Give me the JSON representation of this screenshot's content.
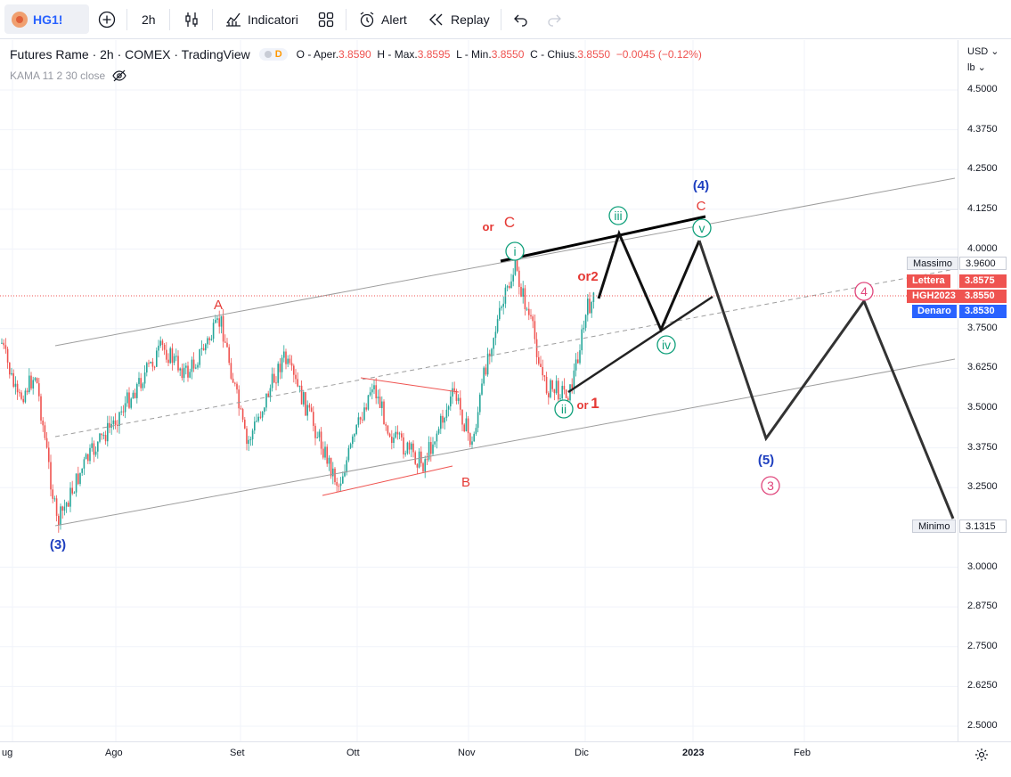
{
  "toolbar": {
    "symbol": "HG1!",
    "interval": "2h",
    "indicators_label": "Indicatori",
    "alert_label": "Alert",
    "replay_label": "Replay"
  },
  "legend": {
    "title": "Futures Rame · 2h · COMEX · TradingView",
    "badge": "D",
    "o_label": "O - Aper.",
    "o_value": "3.8590",
    "h_label": "H - Max.",
    "h_value": "3.8595",
    "l_label": "L - Min.",
    "l_value": "3.8550",
    "c_label": "C - Chius.",
    "c_value": "3.8550",
    "change": "−0.0045 (−0.12%)",
    "indicator": "KAMA 11 2 30 close"
  },
  "price_axis": {
    "currency": "USD",
    "unit": "lb",
    "ticks": [
      "4.5000",
      "4.3750",
      "4.2500",
      "4.1250",
      "4.0000",
      "3.7500",
      "3.6250",
      "3.5000",
      "3.3750",
      "3.2500",
      "3.0000",
      "2.8750",
      "2.7500",
      "2.6250",
      "2.5000"
    ],
    "massimo_label": "Massimo",
    "massimo_value": "3.9600",
    "lettera_label": "Lettera",
    "lettera_value": "3.8575",
    "contract_label": "HGH2023",
    "contract_value": "3.8550",
    "denaro_label": "Denaro",
    "denaro_value": "3.8530",
    "minimo_label": "Minimo",
    "minimo_value": "3.1315"
  },
  "time_axis": [
    "ug",
    "Ago",
    "Set",
    "Ott",
    "Nov",
    "Dic",
    "2023",
    "Feb"
  ],
  "wave_labels": {
    "w3_blue": "(3)",
    "A": "A",
    "or": "or",
    "C": "C",
    "B": "B",
    "i": "i",
    "ii": "ii",
    "iii": "iii",
    "iv": "iv",
    "v": "v",
    "or2": "or2",
    "or1_or": "or",
    "or1_num": "1",
    "w4_blue": "(4)",
    "C_red": "C",
    "w5_blue": "(5)",
    "w3_pink": "3",
    "w4_pink": "4"
  },
  "colors": {
    "up": "#26a69a",
    "down": "#ef5350",
    "accent": "#2962ff",
    "wave_blue": "#1e3fbf",
    "wave_red": "#e53935",
    "wave_green": "#0e9f7a",
    "wave_pink": "#e0457b"
  }
}
